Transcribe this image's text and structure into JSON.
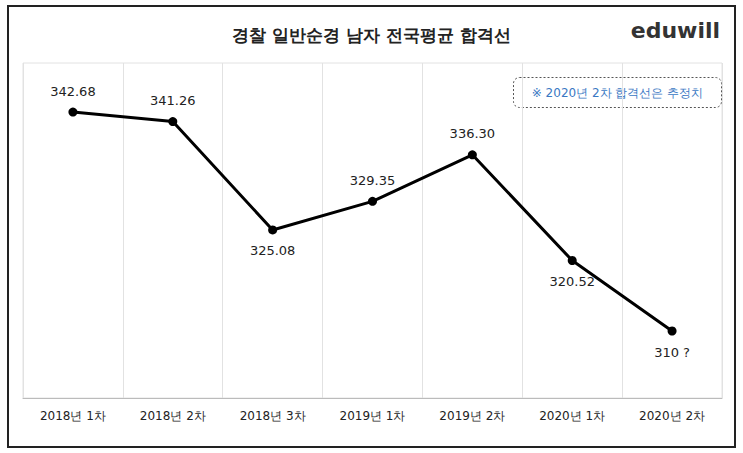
{
  "chart_data": {
    "type": "line",
    "title": "경찰 일반순경 남자 전국평균 합격선",
    "logo": "eduwill",
    "annotation": "※ 2020년 2차 합격선은 추정치",
    "categories": [
      "2018년 1차",
      "2018년 2차",
      "2018년 3차",
      "2019년 1차",
      "2019년 2차",
      "2020년 1차",
      "2020년 2차"
    ],
    "values": [
      342.68,
      341.26,
      325.08,
      329.35,
      336.3,
      320.52,
      310
    ],
    "value_labels": [
      "342.68",
      "341.26",
      "325.08",
      "329.35",
      "336.30",
      "320.52",
      "310 ?"
    ],
    "color": "#000000",
    "marker": "circle",
    "ylim": [
      300,
      350
    ],
    "grid": true,
    "data_labels": true,
    "tick_labels": "x"
  }
}
